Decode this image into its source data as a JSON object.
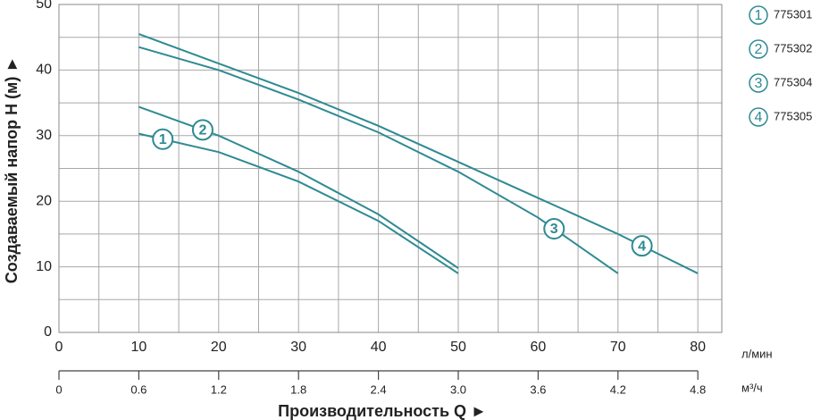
{
  "chart_data": {
    "type": "line",
    "x_label": "Производительность Q ►",
    "y_label": "Создаваемый напор H (м) ►",
    "x_unit": "л/мин",
    "x2_unit": "м³/ч",
    "xlim": [
      0,
      83
    ],
    "xticks": [
      0,
      10,
      20,
      30,
      40,
      50,
      60,
      70,
      80
    ],
    "x2lim": [
      0,
      4.98
    ],
    "x2ticks": [
      0,
      0.6,
      1.2,
      1.8,
      2.4,
      {
        "value": 3.0,
        "label": "3.0"
      },
      3.6,
      4.2,
      4.8
    ],
    "ylim": [
      0,
      50
    ],
    "yticks": [
      0,
      10,
      20,
      30,
      40,
      50
    ],
    "xgrid": [
      0,
      5,
      10,
      15,
      20,
      25,
      30,
      35,
      40,
      45,
      50,
      55,
      60,
      65,
      70,
      75,
      80
    ],
    "ygrid": [
      0,
      5,
      10,
      15,
      20,
      25,
      30,
      35,
      40,
      45,
      50
    ],
    "series": [
      {
        "name": "775301",
        "label": "1",
        "color": "#2e8a93",
        "x": [
          10,
          20,
          30,
          40,
          50
        ],
        "values": [
          30.3,
          27.5,
          23,
          17,
          9
        ]
      },
      {
        "name": "775302",
        "label": "2",
        "color": "#2e8a93",
        "x": [
          10,
          20,
          30,
          40,
          50
        ],
        "values": [
          34.4,
          30,
          24.5,
          18,
          9.8
        ]
      },
      {
        "name": "775304",
        "label": "3",
        "color": "#2e8a93",
        "x": [
          10,
          20,
          30,
          40,
          50,
          60,
          70
        ],
        "values": [
          43.5,
          40,
          35.5,
          30.5,
          24.5,
          17.5,
          9
        ]
      },
      {
        "name": "775305",
        "label": "4",
        "color": "#2e8a93",
        "x": [
          10,
          20,
          30,
          40,
          50,
          60,
          70,
          80
        ],
        "values": [
          45.5,
          41,
          36.5,
          31.5,
          26,
          20.5,
          15,
          9
        ]
      }
    ]
  }
}
